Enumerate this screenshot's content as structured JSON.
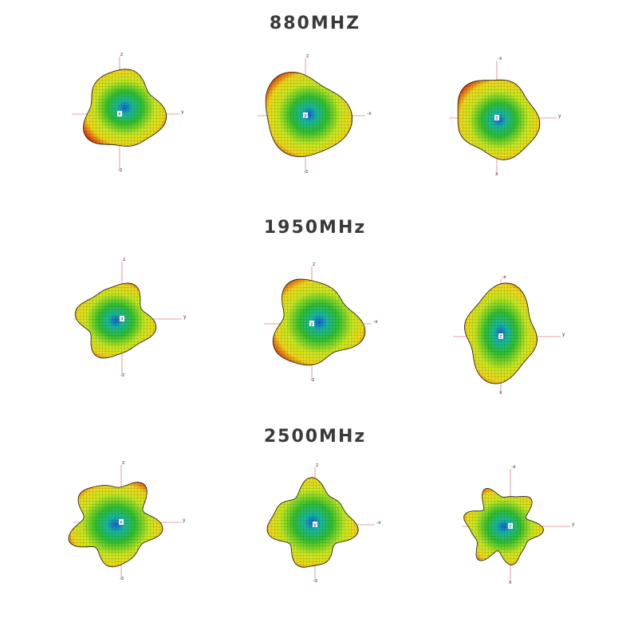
{
  "sections": [
    {
      "title": "880MHZ",
      "plots": [
        {
          "top": "z",
          "right": "y",
          "bottom": "-z",
          "center": "x"
        },
        {
          "top": "z",
          "right": "-x",
          "bottom": "-z",
          "center": "y"
        },
        {
          "top": "-x",
          "right": "y",
          "bottom": "x",
          "center": "z"
        }
      ]
    },
    {
      "title": "1950MHz",
      "plots": [
        {
          "top": "z",
          "right": "y",
          "bottom": "-z",
          "center": "x"
        },
        {
          "top": "z",
          "right": "-x",
          "bottom": "-z",
          "center": "y"
        },
        {
          "top": "-x",
          "right": "y",
          "bottom": "x",
          "center": "z"
        }
      ]
    },
    {
      "title": "2500MHz",
      "plots": [
        {
          "top": "z",
          "right": "y",
          "bottom": "-z",
          "center": "x"
        },
        {
          "top": "z",
          "right": "-x",
          "bottom": "-z",
          "center": "y"
        },
        {
          "top": "-x",
          "right": "y",
          "bottom": "x",
          "center": "z"
        }
      ]
    }
  ]
}
